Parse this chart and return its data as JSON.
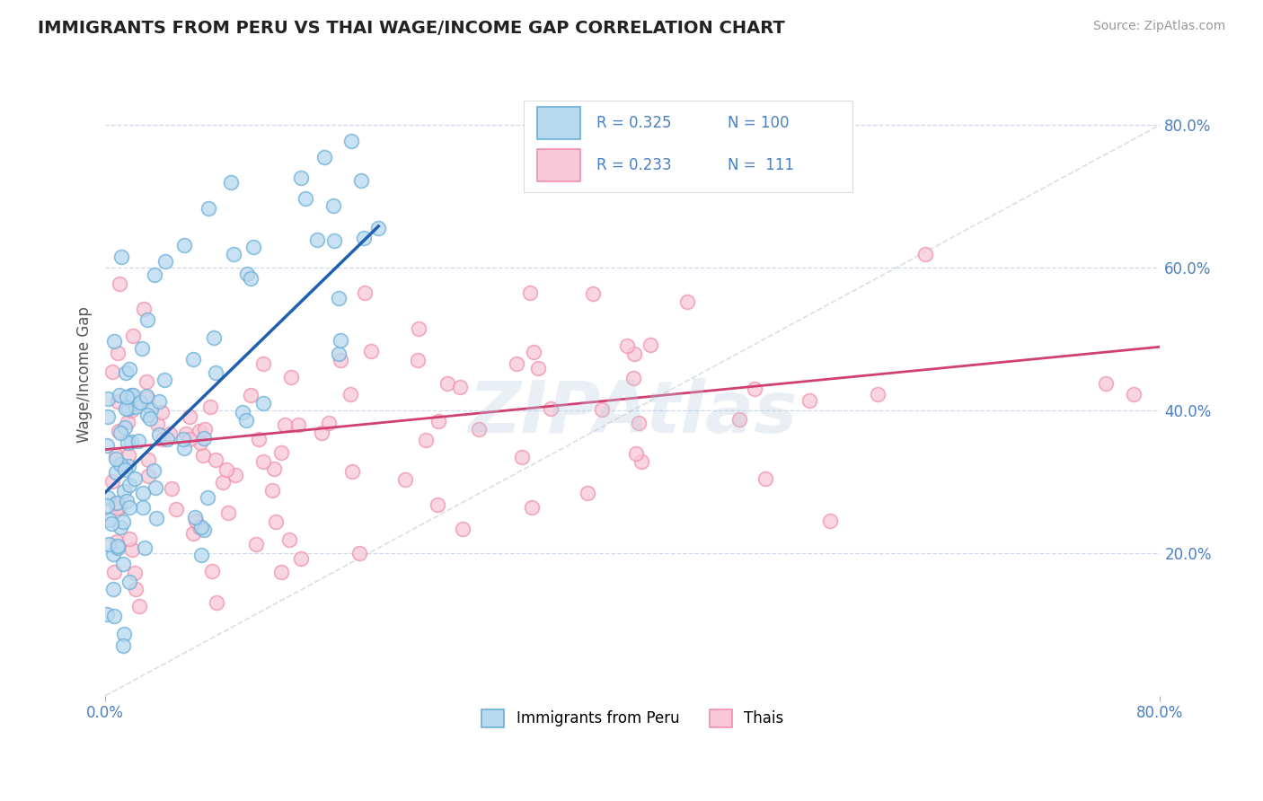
{
  "title": "IMMIGRANTS FROM PERU VS THAI WAGE/INCOME GAP CORRELATION CHART",
  "source": "Source: ZipAtlas.com",
  "ylabel": "Wage/Income Gap",
  "xlim": [
    0.0,
    0.8
  ],
  "ylim": [
    0.0,
    0.9
  ],
  "yticks": [
    0.2,
    0.4,
    0.6,
    0.8
  ],
  "ytick_labels": [
    "20.0%",
    "40.0%",
    "60.0%",
    "80.0%"
  ],
  "legend_R1": "0.325",
  "legend_N1": "100",
  "legend_R2": "0.233",
  "legend_N2": "111",
  "color_peru_edge": "#6aaed6",
  "color_peru_fill": "#b8d9f0",
  "color_thai_edge": "#f090aa",
  "color_thai_fill": "#f8c8d8",
  "color_trend_peru": "#2060b0",
  "color_trend_thai": "#d04070",
  "color_diagonal": "#c0c8d8",
  "watermark": "ZIPAtlas",
  "background": "#ffffff",
  "grid_color": "#c8d4e8",
  "title_color": "#222222",
  "label_color": "#4a7fc1",
  "tick_color": "#4a7fc1",
  "legend_label1": "Immigrants from Peru",
  "legend_label2": "Thais"
}
